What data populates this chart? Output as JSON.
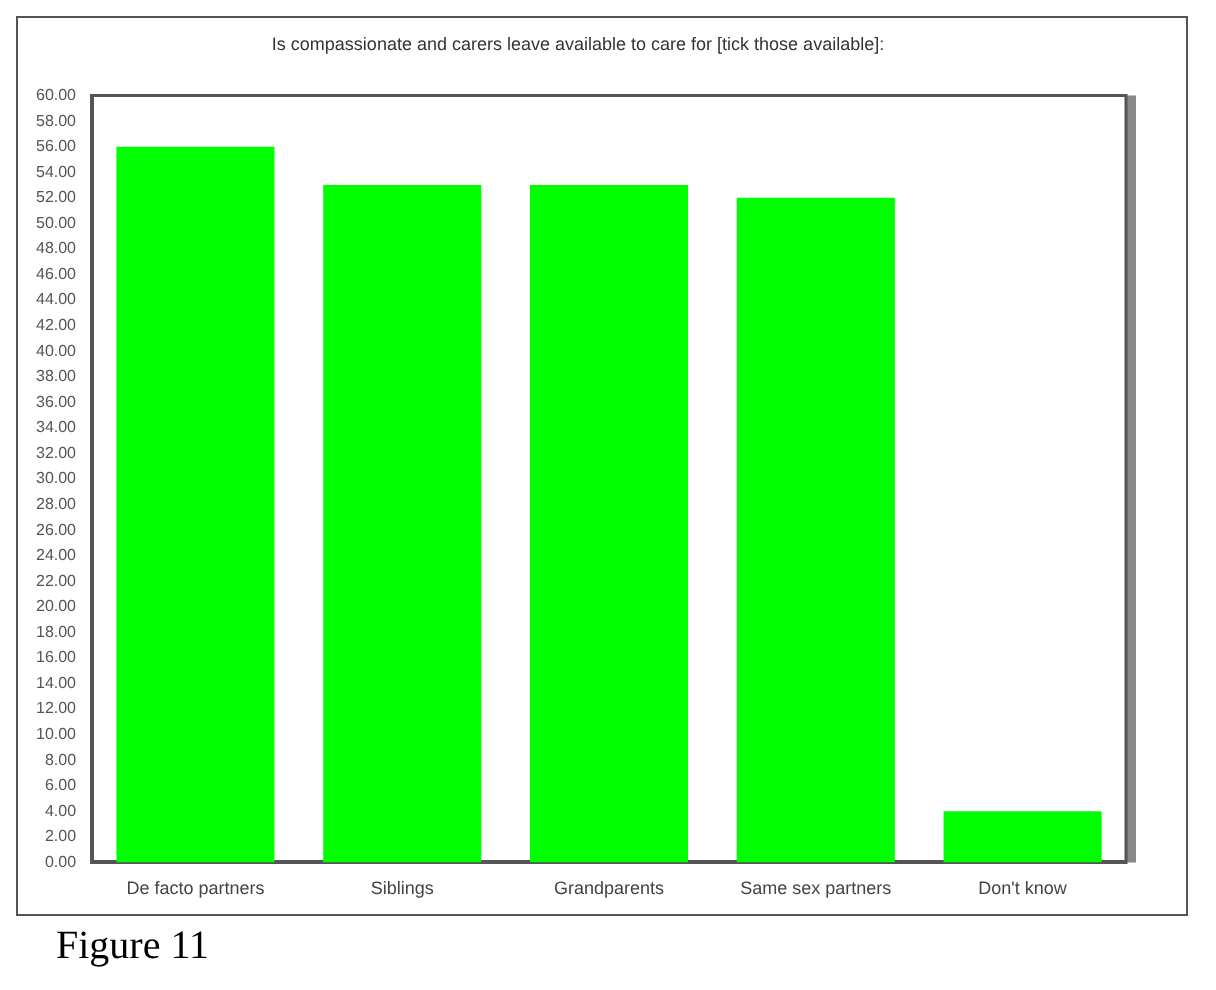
{
  "chart_data": {
    "type": "bar",
    "title": "Is compassionate and carers leave available to care for [tick those available]:",
    "categories": [
      "De facto partners",
      "Siblings",
      "Grandparents",
      "Same sex partners",
      "Don't know"
    ],
    "values": [
      56,
      53,
      53,
      52,
      4
    ],
    "color": "#00ff00",
    "ylim": [
      0,
      60
    ],
    "yticks": [
      {
        "value": 0,
        "label": "0.00"
      },
      {
        "value": 2,
        "label": "2.00"
      },
      {
        "value": 4,
        "label": "4.00"
      },
      {
        "value": 6,
        "label": "6.00"
      },
      {
        "value": 8,
        "label": "8.00"
      },
      {
        "value": 10,
        "label": "10.00"
      },
      {
        "value": 12,
        "label": "12.00"
      },
      {
        "value": 14,
        "label": "14.00"
      },
      {
        "value": 16,
        "label": "16.00"
      },
      {
        "value": 18,
        "label": "18.00"
      },
      {
        "value": 20,
        "label": "20.00"
      },
      {
        "value": 22,
        "label": "22.00"
      },
      {
        "value": 24,
        "label": "24.00"
      },
      {
        "value": 26,
        "label": "26.00"
      },
      {
        "value": 28,
        "label": "28.00"
      },
      {
        "value": 30,
        "label": "30.00"
      },
      {
        "value": 32,
        "label": "32.00"
      },
      {
        "value": 34,
        "label": "34.00"
      },
      {
        "value": 36,
        "label": "36.00"
      },
      {
        "value": 38,
        "label": "38.00"
      },
      {
        "value": 40,
        "label": "40.00"
      },
      {
        "value": 42,
        "label": "42.00"
      },
      {
        "value": 44,
        "label": "44.00"
      },
      {
        "value": 46,
        "label": "46.00"
      },
      {
        "value": 48,
        "label": "48.00"
      },
      {
        "value": 50,
        "label": "50.00"
      },
      {
        "value": 52,
        "label": "52.00"
      },
      {
        "value": 54,
        "label": "54.00"
      },
      {
        "value": 56,
        "label": "56.00"
      },
      {
        "value": 58,
        "label": "58.00"
      },
      {
        "value": 60,
        "label": "60.00"
      }
    ],
    "grid": false,
    "legend": false,
    "annotations": [
      "Figure 11"
    ]
  }
}
